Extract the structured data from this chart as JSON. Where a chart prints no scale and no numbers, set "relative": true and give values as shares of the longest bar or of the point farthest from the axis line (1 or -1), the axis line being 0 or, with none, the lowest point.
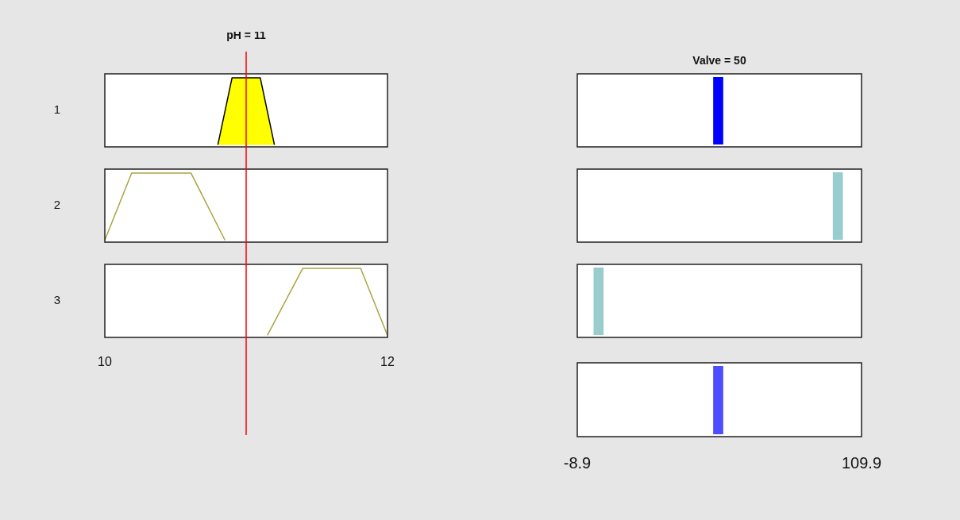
{
  "chart_data": [
    {
      "type": "area",
      "title": "pH = 11",
      "ylabel": "1",
      "x": [
        10.8,
        10.9,
        11.1,
        11.2
      ],
      "values": [
        0,
        1,
        1,
        0
      ],
      "color": "#ffff00",
      "relative": true,
      "xlim": [
        10,
        12
      ],
      "xticks": [
        10,
        12
      ],
      "tick_labels": false,
      "ref_lines": [
        {
          "axis": "x",
          "value": 11,
          "color": "#ff0000"
        }
      ]
    },
    {
      "type": "line",
      "ylabel": "2",
      "x": [
        10,
        10.19,
        10.61,
        10.85
      ],
      "values": [
        0,
        1,
        1,
        0
      ],
      "color": "#a9a545",
      "relative": true,
      "xlim": [
        10,
        12
      ],
      "xticks": [
        10,
        12
      ],
      "tick_labels": false,
      "ref_lines": [
        {
          "axis": "x",
          "value": 11,
          "color": "#ff0000"
        }
      ]
    },
    {
      "type": "line",
      "ylabel": "3",
      "x": [
        11.15,
        11.4,
        11.81,
        12
      ],
      "values": [
        0,
        1,
        1,
        0
      ],
      "color": "#a9a545",
      "relative": true,
      "xlim": [
        10,
        12
      ],
      "xticks": [
        10,
        12
      ],
      "ref_lines": [
        {
          "axis": "x",
          "value": 11,
          "color": "#ff0000"
        }
      ]
    },
    {
      "type": "bar",
      "title": "Valve = 50",
      "x": [
        50
      ],
      "values": [
        1
      ],
      "color": "#0000ff",
      "relative": true,
      "xlim": [
        -8.9,
        109.9
      ],
      "xticks": [
        -8.9,
        109.9
      ],
      "tick_labels": false
    },
    {
      "type": "bar",
      "x": [
        100
      ],
      "values": [
        1
      ],
      "color": "#99cccc",
      "relative": true,
      "xlim": [
        -8.9,
        109.9
      ],
      "xticks": [
        -8.9,
        109.9
      ],
      "tick_labels": false
    },
    {
      "type": "bar",
      "x": [
        0
      ],
      "values": [
        1
      ],
      "color": "#99cccc",
      "relative": true,
      "xlim": [
        -8.9,
        109.9
      ],
      "xticks": [
        -8.9,
        109.9
      ],
      "tick_labels": false
    },
    {
      "type": "bar",
      "x": [
        50
      ],
      "values": [
        1
      ],
      "color": "#4d4dff",
      "relative": true,
      "xlim": [
        -8.9,
        109.9
      ],
      "xticks": [
        -8.9,
        109.9
      ]
    }
  ]
}
